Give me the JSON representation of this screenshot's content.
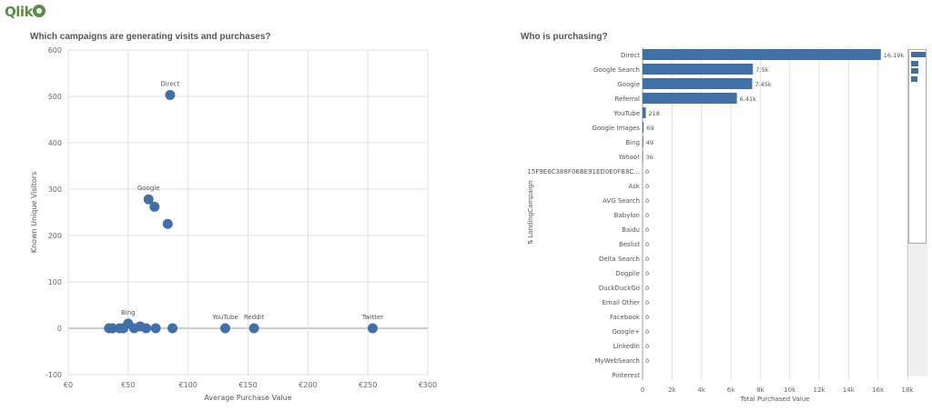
{
  "app": {
    "logo_text": "Qlik"
  },
  "colors": {
    "accent": "#4070a8",
    "logo": "#5a8e45",
    "grid": "#e0e0e0"
  },
  "chart_data": [
    {
      "type": "scatter",
      "title": "Which campaigns are generating visits and purchases?",
      "xlabel": "Average Purchase Value",
      "ylabel": "Known Unique Visitors",
      "xlim": [
        0,
        300
      ],
      "ylim": [
        -100,
        600
      ],
      "x_ticks": [
        0,
        50,
        100,
        150,
        200,
        250,
        300
      ],
      "x_tick_labels": [
        "€0",
        "€50",
        "€100",
        "€150",
        "€200",
        "€250",
        "€300"
      ],
      "y_ticks": [
        -100,
        0,
        100,
        200,
        300,
        400,
        500,
        600
      ],
      "y_tick_labels": [
        "-100",
        "0",
        "100",
        "200",
        "300",
        "400",
        "500",
        "600"
      ],
      "points": [
        {
          "x": 85,
          "y": 503,
          "label": "Direct"
        },
        {
          "x": 67,
          "y": 278,
          "label": "Google"
        },
        {
          "x": 72,
          "y": 262,
          "label": ""
        },
        {
          "x": 83,
          "y": 225,
          "label": ""
        },
        {
          "x": 50,
          "y": 10,
          "label": "Bing"
        },
        {
          "x": 34,
          "y": 0,
          "label": ""
        },
        {
          "x": 37,
          "y": 0,
          "label": ""
        },
        {
          "x": 43,
          "y": 0,
          "label": ""
        },
        {
          "x": 46,
          "y": 0,
          "label": ""
        },
        {
          "x": 55,
          "y": 0,
          "label": ""
        },
        {
          "x": 60,
          "y": 4,
          "label": ""
        },
        {
          "x": 65,
          "y": 0,
          "label": ""
        },
        {
          "x": 73,
          "y": 0,
          "label": ""
        },
        {
          "x": 87,
          "y": 0,
          "label": ""
        },
        {
          "x": 131,
          "y": 0,
          "label": "YouTube"
        },
        {
          "x": 155,
          "y": 0,
          "label": "Reddit"
        },
        {
          "x": 254,
          "y": 0,
          "label": "Twitter"
        }
      ]
    },
    {
      "type": "bar",
      "orientation": "horizontal",
      "title": "Who is purchasing?",
      "xlabel": "Total Purchased Value",
      "ylabel": "LandingCampaign",
      "xlim": [
        0,
        18000
      ],
      "x_ticks": [
        0,
        2000,
        4000,
        6000,
        8000,
        10000,
        12000,
        14000,
        16000,
        18000
      ],
      "x_tick_labels": [
        "0",
        "2k",
        "4k",
        "6k",
        "8k",
        "10k",
        "12k",
        "14k",
        "16k",
        "18k"
      ],
      "categories": [
        "Direct",
        "Google Search",
        "Google",
        "Referral",
        "YouTube",
        "Google Images",
        "Bing",
        "Yahoo!",
        "15F9E6C388F06BE91ED0E0FB8C...",
        "Ask",
        "AVG Search",
        "Babylon",
        "Baidu",
        "Beslist",
        "Delta Search",
        "Dogpile",
        "DuckDuckGo",
        "Email Other",
        "Facebook",
        "Google+",
        "LinkedIn",
        "MyWebSearch",
        "Pinterest"
      ],
      "values": [
        16190,
        7500,
        7450,
        6410,
        218,
        69,
        49,
        36,
        0,
        0,
        0,
        0,
        0,
        0,
        0,
        0,
        0,
        0,
        0,
        0,
        0,
        0,
        null
      ],
      "value_labels": [
        "16.19k",
        "7.5k",
        "7.45k",
        "6.41k",
        "218",
        "69",
        "49",
        "36",
        "0",
        "0",
        "0",
        "0",
        "0",
        "0",
        "0",
        "0",
        "0",
        "0",
        "0",
        "0",
        "0",
        "0",
        ""
      ]
    }
  ]
}
